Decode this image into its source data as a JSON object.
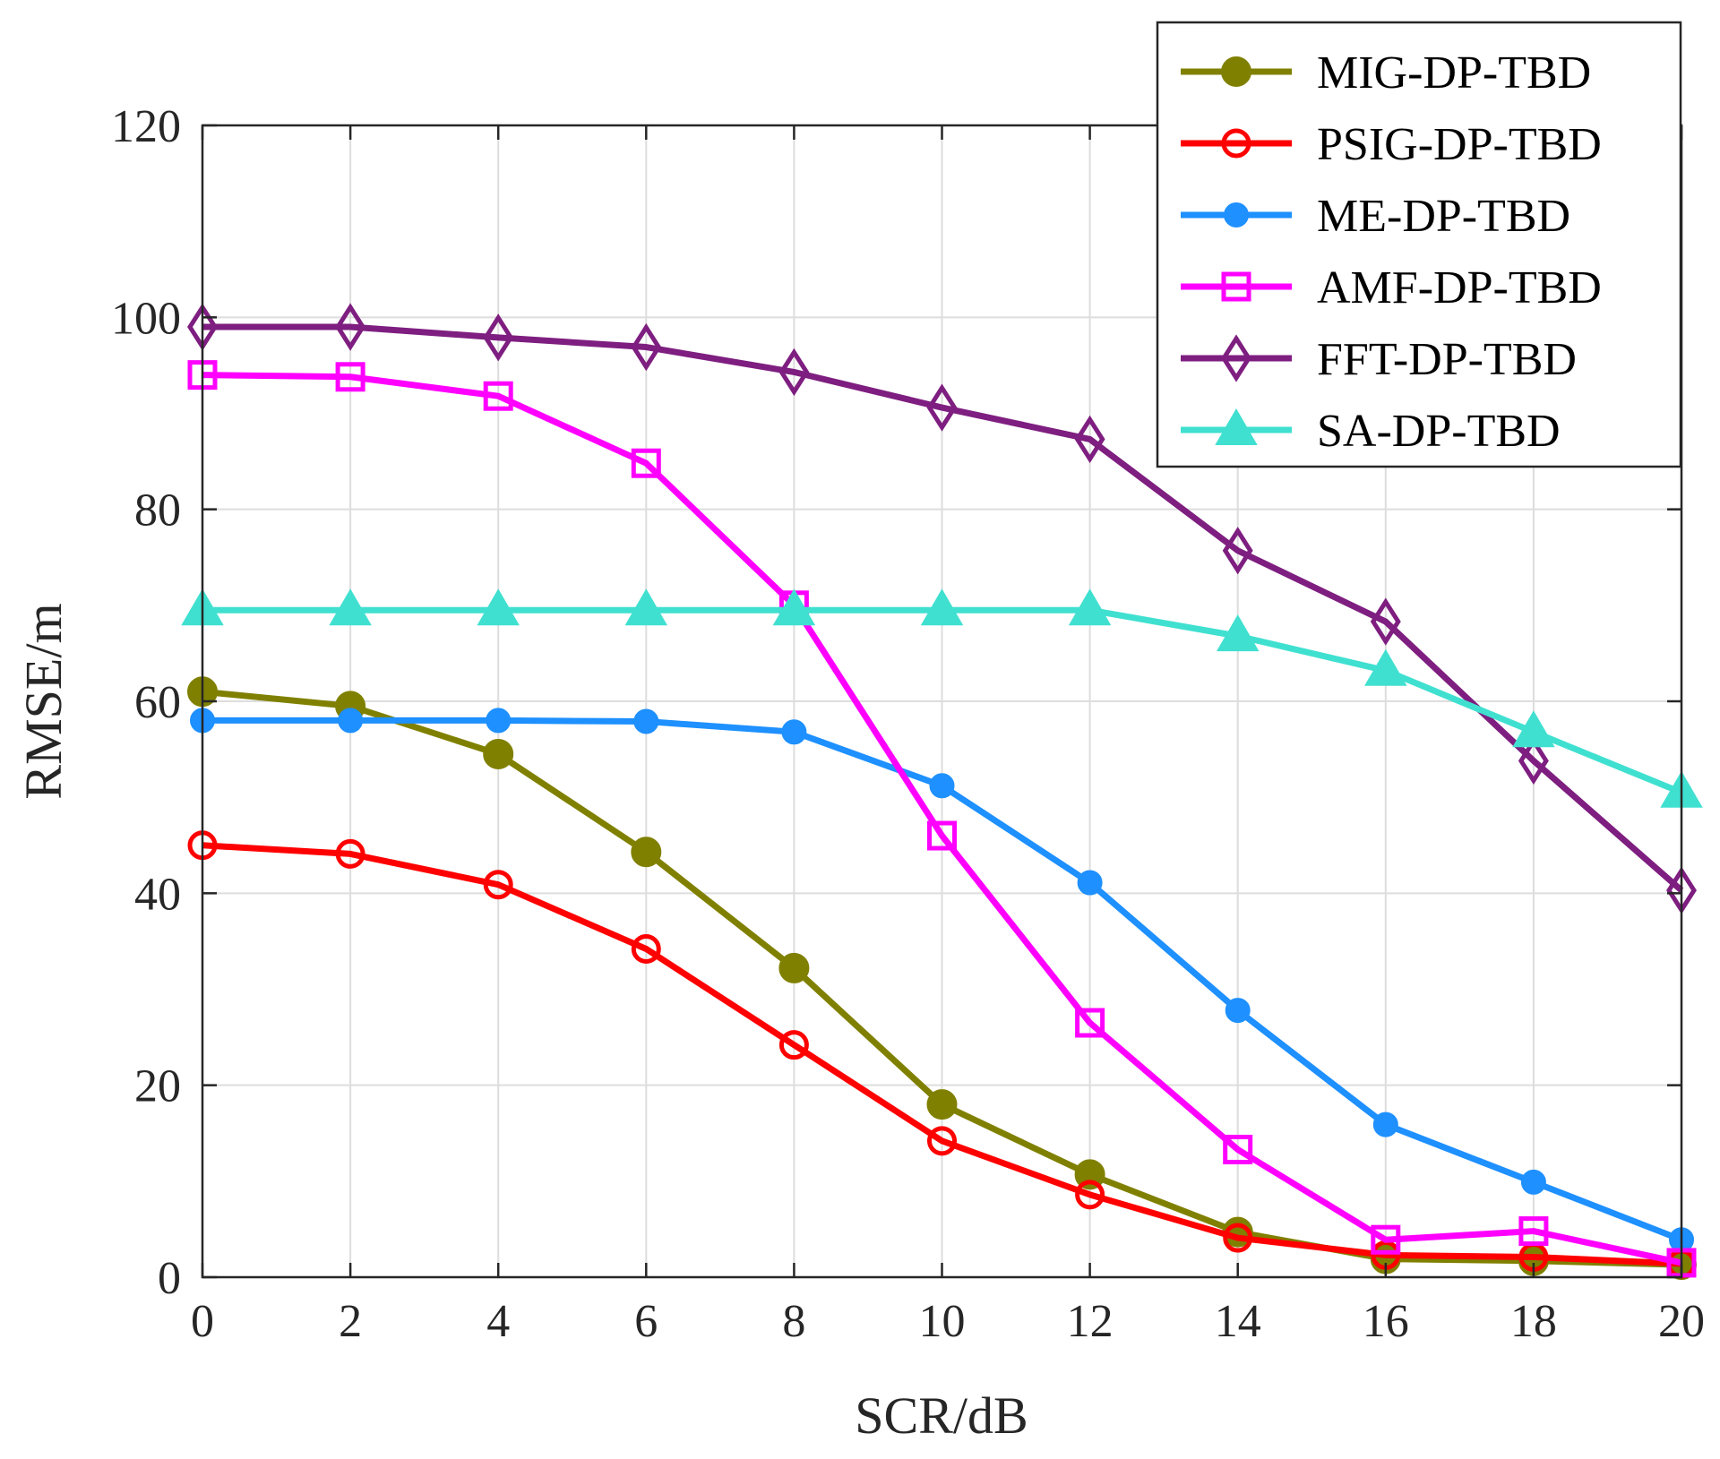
{
  "chart_data": {
    "type": "line",
    "title": "",
    "xlabel": "SCR/dB",
    "ylabel": "RMSE/m",
    "xlim": [
      0,
      20
    ],
    "ylim": [
      0,
      120
    ],
    "xticks": [
      0,
      2,
      4,
      6,
      8,
      10,
      12,
      14,
      16,
      18,
      20
    ],
    "yticks": [
      0,
      20,
      40,
      60,
      80,
      100,
      120
    ],
    "grid": true,
    "legend_position": "top-right",
    "x": [
      0,
      2,
      4,
      6,
      8,
      10,
      12,
      14,
      16,
      18,
      20
    ],
    "series": [
      {
        "name": "MIG-DP-TBD",
        "color": "#808000",
        "marker": "filled-circle",
        "values": [
          61,
          59.5,
          54.5,
          44.3,
          32.2,
          18,
          10.7,
          4.7,
          1.9,
          1.7,
          1.3
        ]
      },
      {
        "name": "PSIG-DP-TBD",
        "color": "#ff0000",
        "marker": "open-circle",
        "values": [
          45,
          44.1,
          40.9,
          34.2,
          24.2,
          14.2,
          8.6,
          4.1,
          2.3,
          2.1,
          1.4
        ]
      },
      {
        "name": "ME-DP-TBD",
        "color": "#1e90ff",
        "marker": "filled-dot",
        "values": [
          58,
          58,
          58,
          57.9,
          56.8,
          51.2,
          41.1,
          27.8,
          15.9,
          9.9,
          3.9
        ]
      },
      {
        "name": "AMF-DP-TBD",
        "color": "#ff00ff",
        "marker": "open-square",
        "values": [
          94,
          93.8,
          91.8,
          84.8,
          70,
          46,
          26.5,
          13.3,
          3.9,
          4.8,
          1.5
        ]
      },
      {
        "name": "FFT-DP-TBD",
        "color": "#7e1e80",
        "marker": "open-diamond",
        "values": [
          99,
          99,
          97.9,
          96.9,
          94.3,
          90.6,
          87.3,
          75.7,
          68.3,
          53.8,
          40.3
        ]
      },
      {
        "name": "SA-DP-TBD",
        "color": "#40e0d0",
        "marker": "filled-triangle",
        "values": [
          69.5,
          69.5,
          69.5,
          69.5,
          69.5,
          69.5,
          69.5,
          66.8,
          63.2,
          56.8,
          50.5
        ]
      }
    ]
  }
}
